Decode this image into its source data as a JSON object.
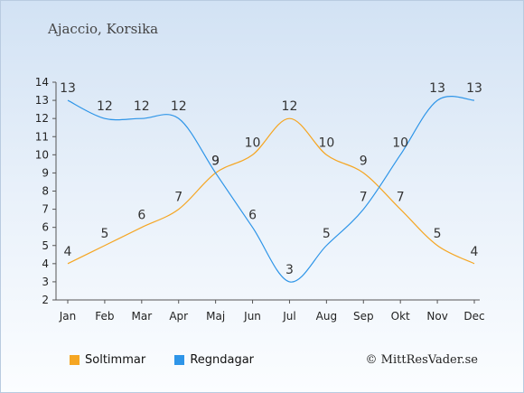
{
  "title": "Ajaccio, Korsika",
  "copyright": "© MittResVader.se",
  "chart_data": {
    "type": "line",
    "categories": [
      "Jan",
      "Feb",
      "Mar",
      "Apr",
      "Maj",
      "Jun",
      "Jul",
      "Aug",
      "Sep",
      "Okt",
      "Nov",
      "Dec"
    ],
    "series": [
      {
        "name": "Soltimmar",
        "color": "#f5a623",
        "values": [
          4,
          5,
          6,
          7,
          9,
          10,
          12,
          10,
          9,
          7,
          5,
          4
        ]
      },
      {
        "name": "Regndagar",
        "color": "#2e95e8",
        "values": [
          13,
          12,
          12,
          12,
          9,
          6,
          3,
          5,
          7,
          10,
          13,
          13
        ]
      }
    ],
    "ylim": [
      2,
      14
    ],
    "yticks": [
      2,
      3,
      4,
      5,
      6,
      7,
      8,
      9,
      10,
      11,
      12,
      13,
      14
    ],
    "legend_position": "bottom-left",
    "grid": false
  }
}
